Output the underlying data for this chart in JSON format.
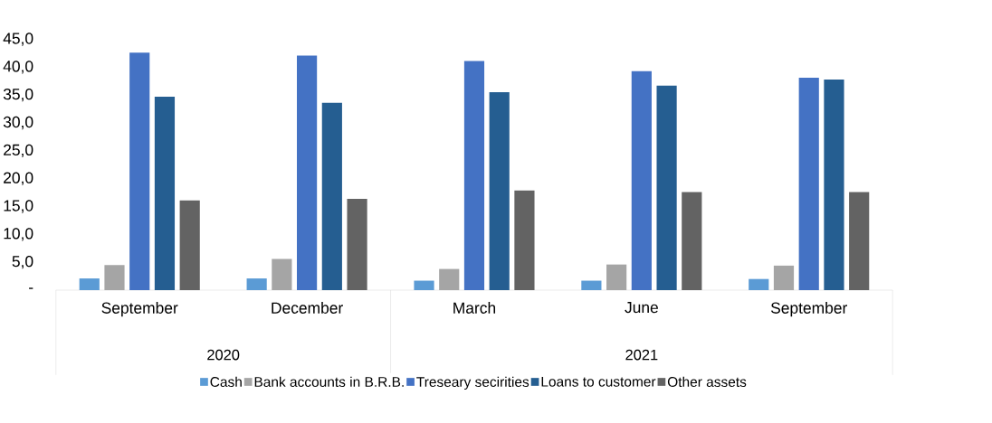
{
  "chart_data": {
    "type": "bar",
    "categories": [
      "September",
      "December",
      "March",
      "June",
      "September"
    ],
    "series": [
      {
        "name": "Cash",
        "color": "#5b9bd5",
        "values": [
          2.1,
          2.1,
          1.7,
          1.7,
          2.0
        ]
      },
      {
        "name": "Bank accounts in B.R.B.",
        "color": "#a5a5a5",
        "values": [
          4.5,
          5.6,
          3.8,
          4.6,
          4.4
        ]
      },
      {
        "name": "Treseary secirities",
        "color": "#4472c4",
        "values": [
          42.6,
          42.1,
          41.1,
          39.3,
          38.1
        ]
      },
      {
        "name": "Loans to customer",
        "color": "#255e91",
        "values": [
          34.7,
          33.6,
          35.5,
          36.7,
          37.8
        ]
      },
      {
        "name": "Other assets",
        "color": "#636363",
        "values": [
          16.1,
          16.4,
          17.9,
          17.6,
          17.6
        ]
      }
    ],
    "annotations": [
      "2020",
      "2021"
    ],
    "ylim": [
      0,
      45
    ],
    "yticks": [
      {
        "value": 0,
        "label": "-"
      },
      {
        "value": 5,
        "label": "5,0"
      },
      {
        "value": 10,
        "label": "10,0"
      },
      {
        "value": 15,
        "label": "15,0"
      },
      {
        "value": 20,
        "label": "20,0"
      },
      {
        "value": 25,
        "label": "25,0"
      },
      {
        "value": 30,
        "label": "30,0"
      },
      {
        "value": 35,
        "label": "35,0"
      },
      {
        "value": 40,
        "label": "40,0"
      },
      {
        "value": 45,
        "label": "45,0"
      }
    ],
    "grid": false,
    "legend": "bottom"
  }
}
